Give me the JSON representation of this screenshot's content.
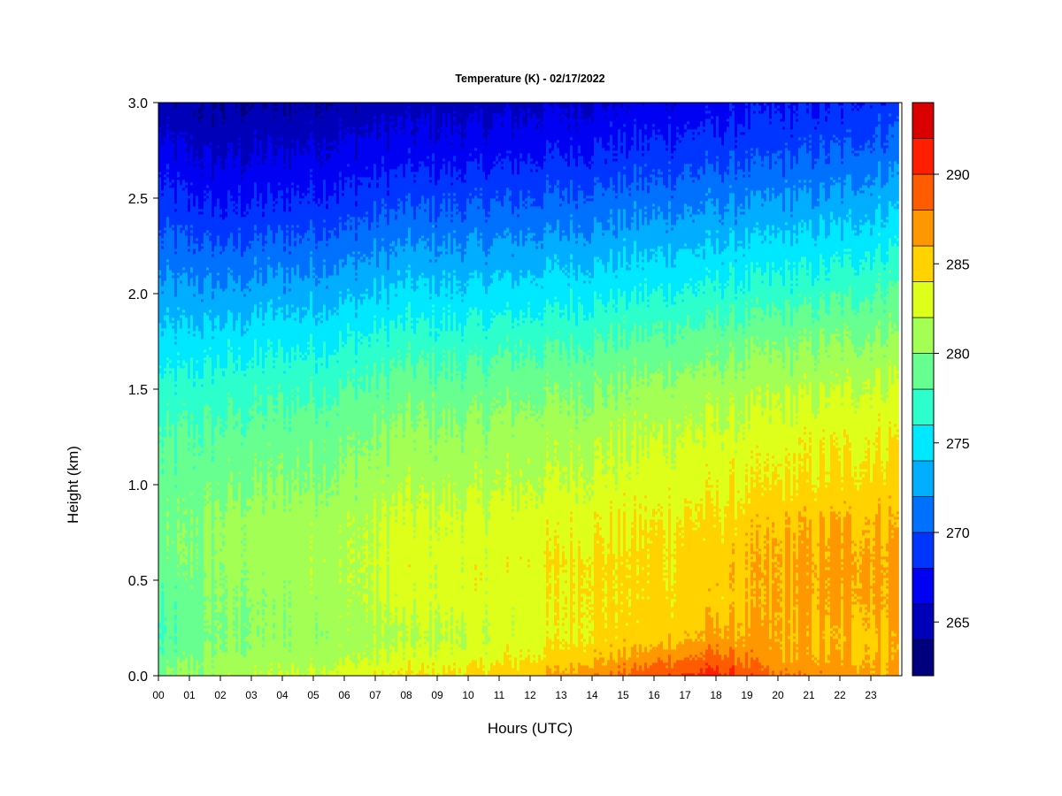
{
  "chart_data": {
    "type": "heatmap",
    "title": "Temperature (K) - 02/17/2022",
    "xlabel": "Hours (UTC)",
    "ylabel": "Height (km)",
    "x_ticks": [
      "00",
      "01",
      "02",
      "03",
      "04",
      "05",
      "06",
      "07",
      "08",
      "09",
      "10",
      "11",
      "12",
      "13",
      "14",
      "15",
      "16",
      "17",
      "18",
      "19",
      "20",
      "21",
      "22",
      "23"
    ],
    "x_range": [
      0,
      23.9
    ],
    "y_ticks": [
      "0.0",
      "0.5",
      "1.0",
      "1.5",
      "2.0",
      "2.5",
      "3.0"
    ],
    "y_tick_values": [
      0.0,
      0.5,
      1.0,
      1.5,
      2.0,
      2.5,
      3.0
    ],
    "y_range": [
      0.0,
      3.0
    ],
    "colorbar": {
      "range": [
        262,
        294
      ],
      "levels": [
        262,
        264,
        266,
        268,
        270,
        272,
        274,
        276,
        278,
        280,
        282,
        284,
        286,
        288,
        290,
        292,
        294
      ],
      "colors": [
        "#00007f",
        "#0000b8",
        "#0000f2",
        "#0035ff",
        "#0070ff",
        "#00adff",
        "#00e8ff",
        "#2cffcc",
        "#67ff90",
        "#a3ff54",
        "#deff19",
        "#ffd200",
        "#ff9800",
        "#ff5b00",
        "#ff1e00",
        "#db0000",
        "#8b0000"
      ],
      "tick_labels": [
        "265",
        "270",
        "275",
        "280",
        "285",
        "290"
      ],
      "tick_values": [
        265,
        270,
        275,
        280,
        285,
        290
      ]
    },
    "heights_km": [
      0.0,
      0.1,
      0.2,
      0.4,
      0.6,
      0.8,
      1.0,
      1.25,
      1.5,
      1.75,
      2.0,
      2.25,
      2.5,
      2.75,
      3.0
    ],
    "hours": [
      0,
      2,
      4,
      6,
      8,
      10,
      12,
      14,
      16,
      18,
      20,
      22,
      23.9
    ],
    "temperature_k": [
      [
        279.5,
        281.0,
        282.0,
        283.0,
        284.0,
        284.5,
        285.5,
        287.5,
        289.5,
        291.0,
        288.0,
        287.0,
        286.5
      ],
      [
        278.5,
        280.5,
        281.0,
        281.5,
        282.5,
        283.0,
        284.0,
        285.5,
        287.0,
        288.5,
        286.5,
        286.0,
        286.0
      ],
      [
        277.5,
        280.0,
        280.5,
        281.0,
        281.5,
        282.0,
        283.0,
        284.5,
        285.0,
        286.5,
        286.0,
        285.5,
        286.0
      ],
      [
        278.0,
        280.0,
        280.5,
        281.5,
        282.5,
        283.0,
        283.0,
        284.5,
        284.5,
        285.0,
        286.0,
        286.5,
        286.5
      ],
      [
        279.0,
        280.5,
        281.0,
        281.5,
        283.0,
        283.0,
        283.5,
        284.5,
        284.5,
        285.0,
        286.0,
        286.5,
        286.5
      ],
      [
        279.0,
        280.5,
        281.0,
        281.5,
        282.5,
        282.5,
        283.0,
        283.5,
        284.0,
        284.5,
        285.5,
        286.0,
        286.0
      ],
      [
        278.5,
        279.5,
        280.0,
        280.5,
        281.5,
        281.5,
        282.0,
        282.5,
        283.0,
        283.5,
        284.0,
        284.5,
        285.0
      ],
      [
        278.0,
        278.5,
        279.0,
        279.5,
        280.5,
        280.5,
        281.0,
        281.5,
        282.0,
        282.5,
        283.0,
        283.5,
        284.0
      ],
      [
        276.5,
        277.0,
        277.5,
        278.0,
        279.0,
        279.0,
        279.5,
        280.0,
        280.5,
        281.0,
        281.5,
        282.0,
        282.5
      ],
      [
        274.5,
        275.0,
        275.5,
        276.0,
        277.0,
        277.0,
        277.5,
        278.0,
        278.5,
        279.0,
        279.5,
        280.0,
        280.5
      ],
      [
        272.5,
        272.5,
        273.0,
        273.5,
        274.5,
        274.5,
        275.0,
        275.5,
        276.0,
        276.5,
        277.0,
        277.5,
        278.5
      ],
      [
        270.5,
        270.0,
        270.5,
        271.0,
        272.0,
        272.0,
        272.5,
        273.0,
        273.5,
        274.0,
        274.5,
        275.0,
        276.0
      ],
      [
        268.5,
        267.5,
        268.0,
        268.5,
        269.5,
        269.5,
        270.0,
        270.5,
        271.0,
        271.5,
        272.0,
        272.5,
        273.5
      ],
      [
        266.5,
        265.5,
        266.0,
        266.5,
        267.0,
        267.0,
        267.5,
        268.0,
        268.5,
        269.0,
        269.5,
        270.0,
        271.0
      ],
      [
        264.5,
        264.0,
        264.0,
        264.5,
        265.0,
        265.0,
        265.5,
        266.0,
        266.5,
        267.0,
        267.5,
        268.0,
        269.0
      ]
    ],
    "grid": false,
    "legend": "colorbar-right"
  }
}
